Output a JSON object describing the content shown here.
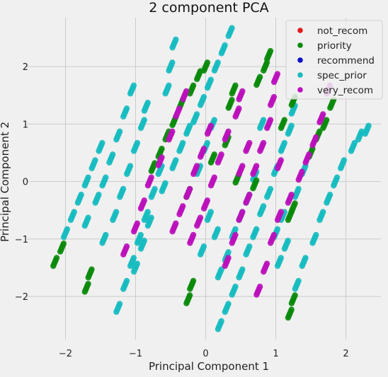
{
  "chart_data": {
    "type": "scatter",
    "title": "2 component PCA",
    "xlabel": "Principal Component 1",
    "ylabel": "Principal Component 2",
    "xlim": [
      -2.55,
      2.5
    ],
    "ylim": [
      -2.75,
      2.85
    ],
    "xticks": [
      -2,
      -1,
      0,
      1,
      2
    ],
    "yticks": [
      -2,
      -1,
      0,
      1,
      2
    ],
    "grid": true,
    "legend_placement": "top-right",
    "series": [
      {
        "name": "not_recom",
        "color": "#e41a1c",
        "points": []
      },
      {
        "name": "priority",
        "color": "#0a8a0a",
        "points": [
          [
            -2.15,
            -1.4
          ],
          [
            -2.05,
            -1.15
          ],
          [
            -1.7,
            -1.85
          ],
          [
            -1.65,
            -1.6
          ],
          [
            -0.75,
            0.25
          ],
          [
            -0.65,
            0.5
          ],
          [
            -0.45,
            1.05
          ],
          [
            -0.35,
            1.35
          ],
          [
            -0.25,
            -2.05
          ],
          [
            -0.2,
            -1.8
          ],
          [
            -0.2,
            1.6
          ],
          [
            -0.1,
            1.85
          ],
          [
            0.0,
            2.0
          ],
          [
            -0.25,
            -0.2
          ],
          [
            0.35,
            1.35
          ],
          [
            0.4,
            1.6
          ],
          [
            0.75,
            1.75
          ],
          [
            0.85,
            2.0
          ],
          [
            0.9,
            2.2
          ],
          [
            0.7,
            -0.05
          ],
          [
            1.2,
            -2.3
          ],
          [
            1.25,
            -2.05
          ],
          [
            1.2,
            -0.6
          ],
          [
            1.25,
            -0.45
          ],
          [
            1.1,
            1.0
          ],
          [
            1.25,
            1.4
          ],
          [
            1.5,
            0.5
          ],
          [
            1.6,
            0.8
          ],
          [
            1.7,
            1.0
          ],
          [
            1.8,
            1.35
          ],
          [
            0.1,
            0.4
          ],
          [
            0.3,
            0.7
          ],
          [
            -0.55,
            0.8
          ],
          [
            0.45,
            0.05
          ]
        ]
      },
      {
        "name": "recommend",
        "color": "#1010c8",
        "points": []
      },
      {
        "name": "spec_prior",
        "color": "#17bcc0",
        "points": [
          [
            -2.0,
            -0.9
          ],
          [
            -1.9,
            -0.6
          ],
          [
            -1.8,
            -0.3
          ],
          [
            -1.7,
            0.0
          ],
          [
            -1.6,
            0.3
          ],
          [
            -1.5,
            0.6
          ],
          [
            -1.7,
            -0.7
          ],
          [
            -1.55,
            -0.3
          ],
          [
            -1.45,
            0.0
          ],
          [
            -1.35,
            0.4
          ],
          [
            -1.25,
            0.8
          ],
          [
            -1.15,
            1.2
          ],
          [
            -1.05,
            1.6
          ],
          [
            -1.45,
            -1.0
          ],
          [
            -1.3,
            -0.6
          ],
          [
            -1.2,
            -0.2
          ],
          [
            -1.1,
            0.2
          ],
          [
            -1.0,
            0.6
          ],
          [
            -0.9,
            1.0
          ],
          [
            -0.85,
            1.3
          ],
          [
            -1.25,
            -2.2
          ],
          [
            -1.15,
            -1.8
          ],
          [
            -1.05,
            -1.4
          ],
          [
            -0.95,
            -1.0
          ],
          [
            -0.85,
            -0.6
          ],
          [
            -0.75,
            -0.2
          ],
          [
            -0.65,
            0.2
          ],
          [
            -0.55,
            1.6
          ],
          [
            -0.5,
            2.0
          ],
          [
            -0.45,
            2.4
          ],
          [
            -1.0,
            -1.5
          ],
          [
            -0.9,
            -1.1
          ],
          [
            -0.8,
            -0.7
          ],
          [
            -0.6,
            -0.1
          ],
          [
            -0.45,
            0.3
          ],
          [
            -0.35,
            0.6
          ],
          [
            -0.25,
            0.9
          ],
          [
            -0.15,
            1.1
          ],
          [
            -0.05,
            1.4
          ],
          [
            0.05,
            1.7
          ],
          [
            0.15,
            2.0
          ],
          [
            0.25,
            2.3
          ],
          [
            0.35,
            2.6
          ],
          [
            -0.1,
            0.2
          ],
          [
            0.0,
            0.6
          ],
          [
            0.1,
            1.0
          ],
          [
            0.2,
            -1.6
          ],
          [
            0.3,
            -1.3
          ],
          [
            0.4,
            -0.9
          ],
          [
            0.5,
            -0.6
          ],
          [
            0.6,
            -0.3
          ],
          [
            0.7,
            0.1
          ],
          [
            0.2,
            -2.5
          ],
          [
            0.3,
            -2.2
          ],
          [
            0.4,
            -1.9
          ],
          [
            0.5,
            -1.6
          ],
          [
            0.6,
            -1.2
          ],
          [
            0.7,
            -0.9
          ],
          [
            0.8,
            -0.5
          ],
          [
            0.9,
            -0.2
          ],
          [
            1.0,
            0.2
          ],
          [
            1.1,
            0.6
          ],
          [
            1.2,
            0.9
          ],
          [
            1.25,
            1.25
          ],
          [
            0.8,
            1.0
          ],
          [
            1.0,
            -0.9
          ],
          [
            1.1,
            -0.6
          ],
          [
            1.3,
            -0.2
          ],
          [
            1.4,
            0.2
          ],
          [
            1.3,
            -1.8
          ],
          [
            1.4,
            -1.4
          ],
          [
            1.55,
            -1.0
          ],
          [
            1.65,
            -0.6
          ],
          [
            1.75,
            -0.3
          ],
          [
            1.85,
            0.0
          ],
          [
            1.95,
            0.3
          ],
          [
            2.1,
            0.6
          ],
          [
            2.2,
            0.8
          ],
          [
            2.3,
            0.9
          ],
          [
            0.05,
            -0.6
          ],
          [
            0.15,
            -0.9
          ],
          [
            -0.05,
            -1.2
          ],
          [
            1.15,
            -1.1
          ],
          [
            1.05,
            -1.4
          ]
        ]
      },
      {
        "name": "very_recom",
        "color": "#bb10bb",
        "points": [
          [
            -1.15,
            -1.2
          ],
          [
            -1.0,
            -0.8
          ],
          [
            -0.9,
            -0.4
          ],
          [
            -0.8,
            0.0
          ],
          [
            -0.65,
            0.35
          ],
          [
            -0.5,
            0.8
          ],
          [
            -0.4,
            1.2
          ],
          [
            -0.3,
            1.5
          ],
          [
            -0.2,
            -1.0
          ],
          [
            -0.1,
            -0.7
          ],
          [
            0.0,
            -0.4
          ],
          [
            0.1,
            0.0
          ],
          [
            0.2,
            0.4
          ],
          [
            0.3,
            0.8
          ],
          [
            0.45,
            1.2
          ],
          [
            0.5,
            1.5
          ],
          [
            -0.45,
            -0.8
          ],
          [
            -0.35,
            -0.5
          ],
          [
            -0.25,
            -0.2
          ],
          [
            -0.15,
            0.2
          ],
          [
            -0.05,
            0.5
          ],
          [
            0.05,
            0.9
          ],
          [
            0.3,
            -1.4
          ],
          [
            0.4,
            -1.0
          ],
          [
            0.5,
            -0.6
          ],
          [
            0.6,
            -0.3
          ],
          [
            0.7,
            0.2
          ],
          [
            0.8,
            0.6
          ],
          [
            0.9,
            1.0
          ],
          [
            0.95,
            1.4
          ],
          [
            1.0,
            1.8
          ],
          [
            0.75,
            -1.9
          ],
          [
            0.85,
            -1.5
          ],
          [
            0.95,
            -1.0
          ],
          [
            1.05,
            -0.6
          ],
          [
            1.2,
            -0.3
          ],
          [
            1.35,
            0.1
          ],
          [
            1.45,
            0.4
          ],
          [
            1.55,
            0.7
          ],
          [
            1.65,
            1.1
          ],
          [
            1.75,
            1.6
          ],
          [
            0.6,
            0.6
          ],
          [
            0.5,
            0.2
          ],
          [
            1.05,
            0.3
          ]
        ]
      }
    ]
  }
}
